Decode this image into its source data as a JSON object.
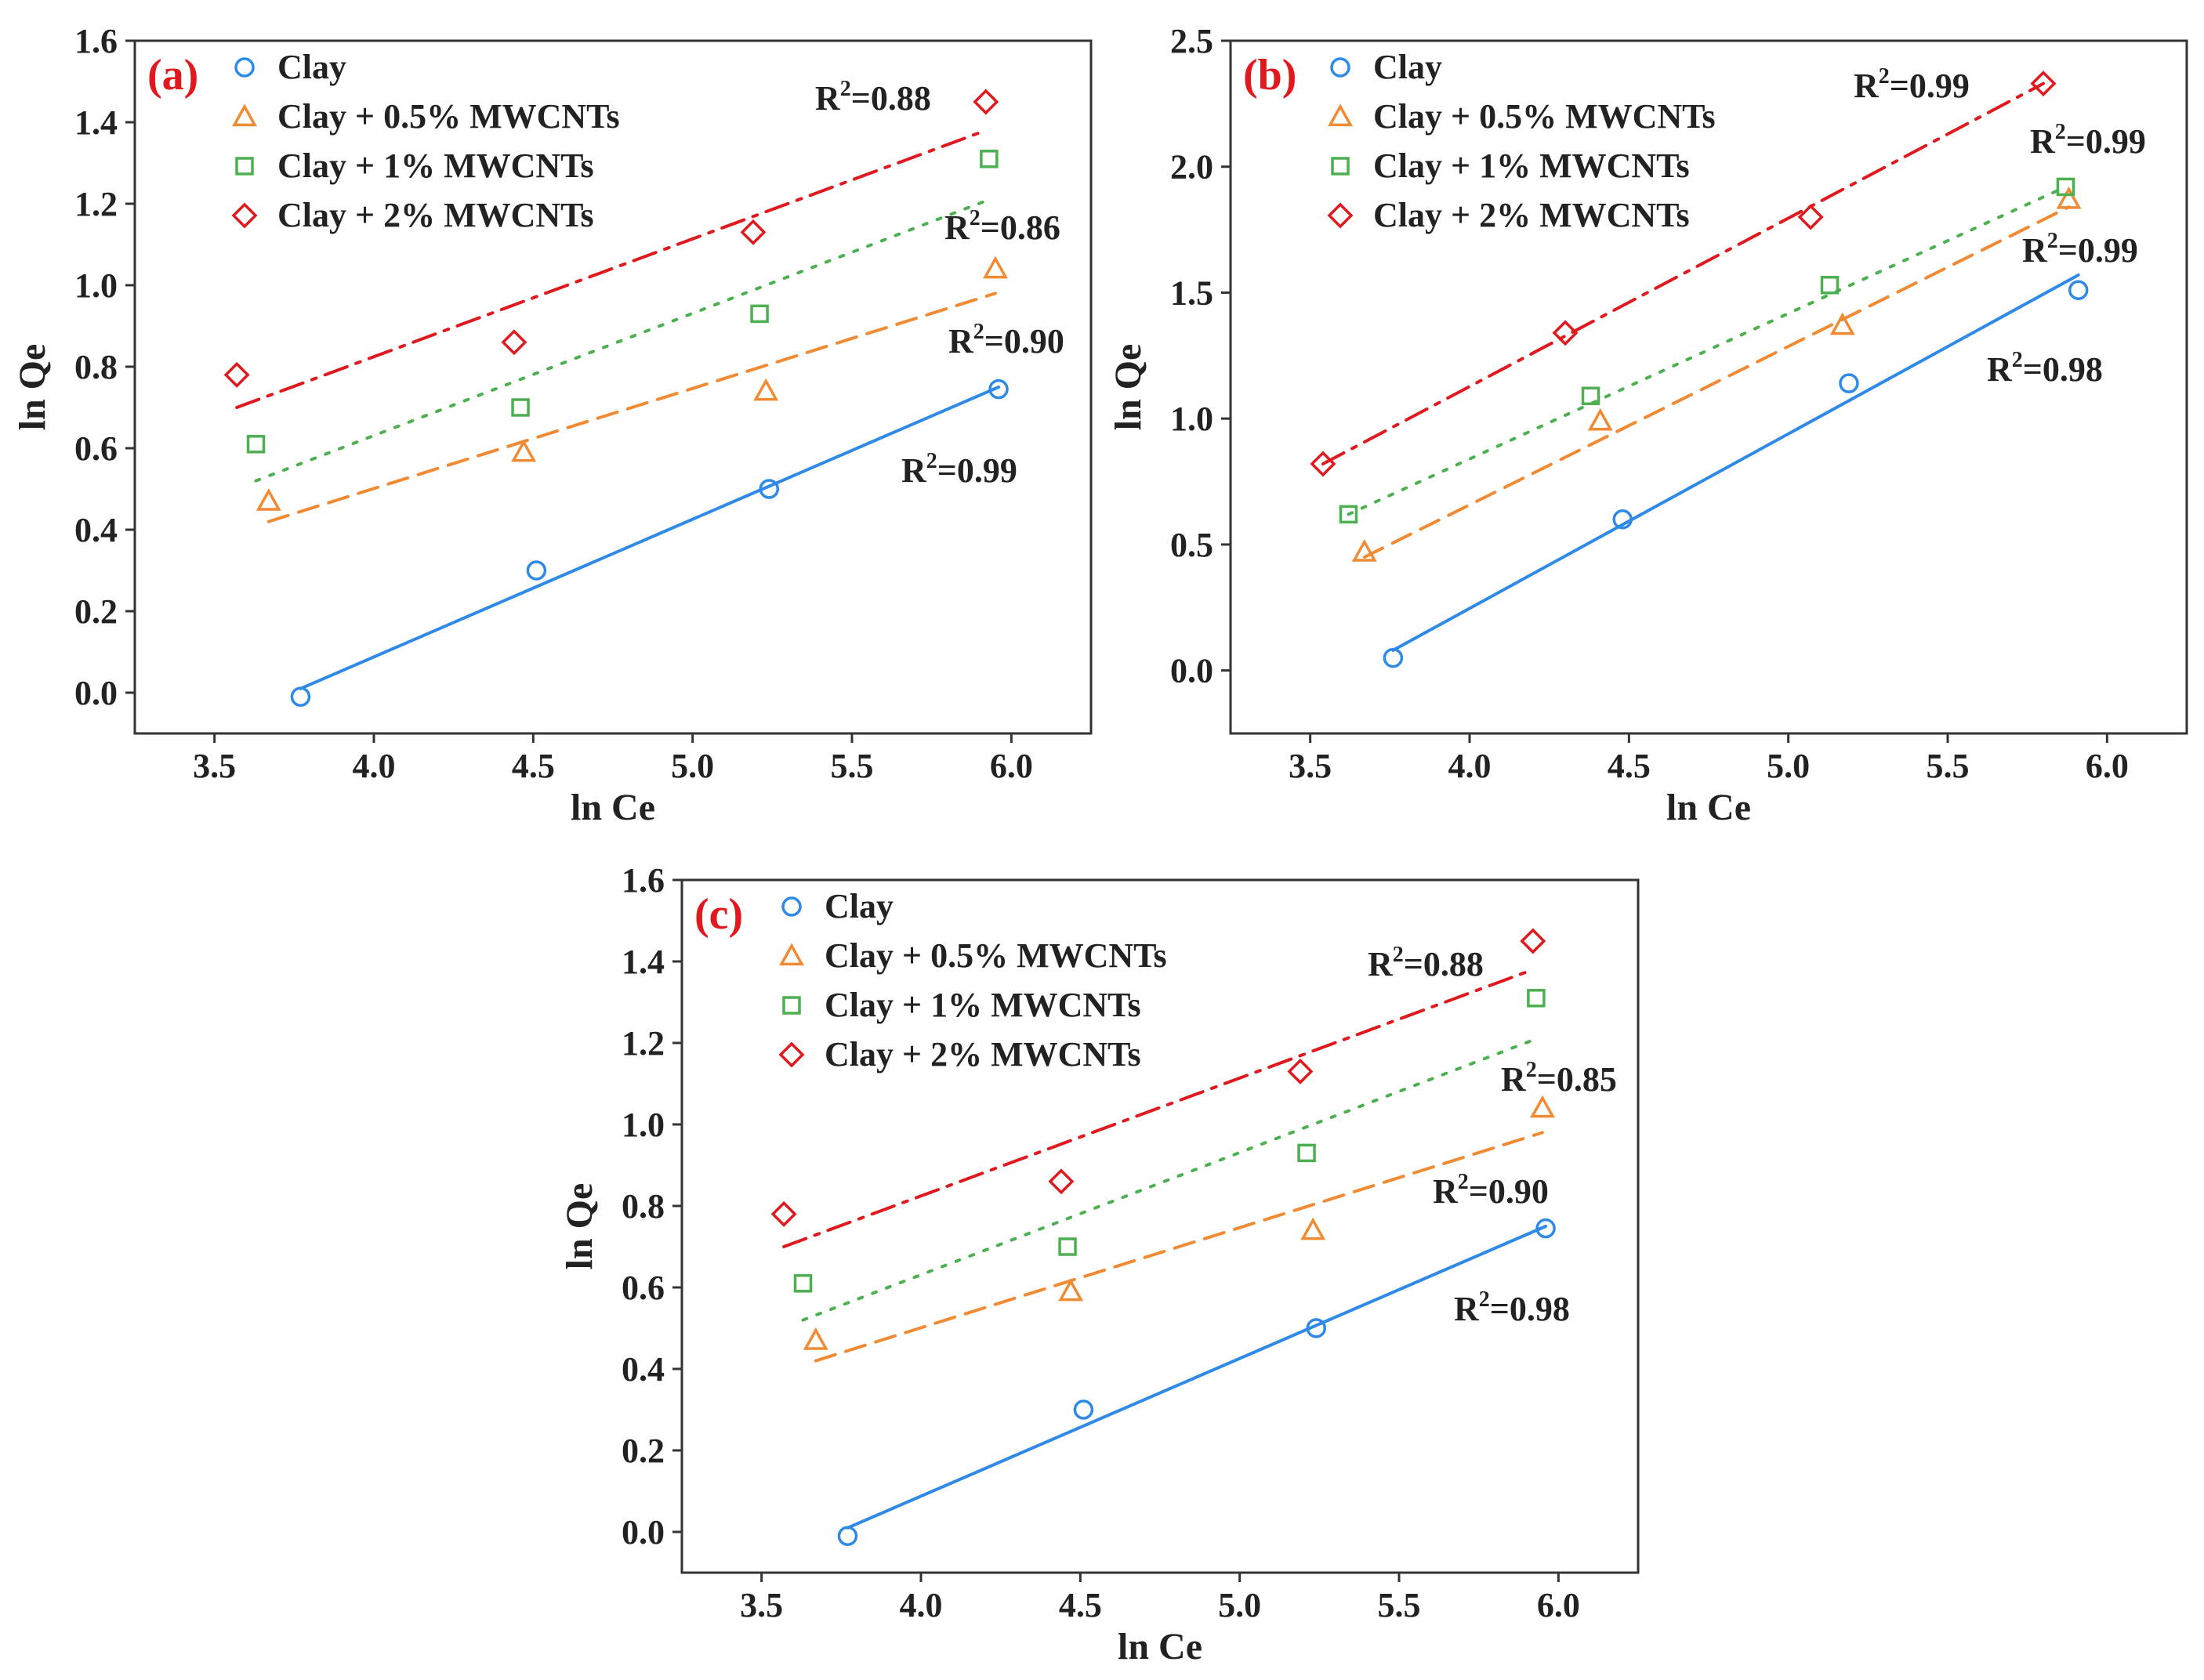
{
  "chart_data": [
    {
      "type": "scatter",
      "panel_label": "(a)",
      "xlabel": "ln Ce",
      "ylabel": "ln Qe",
      "xlim": [
        3.25,
        6.25
      ],
      "ylim": [
        -0.1,
        1.6
      ],
      "xticks": [
        "3.5",
        "4.0",
        "4.5",
        "5.0",
        "5.5",
        "6.0"
      ],
      "yticks": [
        "0.0",
        "0.2",
        "0.4",
        "0.6",
        "0.8",
        "1.0",
        "1.2",
        "1.4",
        "1.6"
      ],
      "legend_position": "top-left",
      "series": [
        {
          "name": "Clay",
          "marker": "circle",
          "color": "#2e8ae6",
          "line": "solid",
          "x": [
            3.77,
            4.51,
            5.24,
            5.96
          ],
          "y": [
            -0.01,
            0.3,
            0.5,
            0.745
          ],
          "fit": {
            "x": [
              3.77,
              5.96
            ],
            "y": [
              0.01,
              0.75
            ]
          },
          "r2": {
            "prefix": "R",
            "sup": "2",
            "value": "=0.99"
          }
        },
        {
          "name": "Clay + 0.5% MWCNTs",
          "marker": "triangle",
          "color": "#f08a33",
          "line": "dashed",
          "x": [
            3.67,
            4.47,
            5.23,
            5.95
          ],
          "y": [
            0.47,
            0.59,
            0.74,
            1.04
          ],
          "fit": {
            "x": [
              3.67,
              5.95
            ],
            "y": [
              0.42,
              0.98
            ]
          },
          "r2": {
            "prefix": "R",
            "sup": "2",
            "value": "=0.90"
          }
        },
        {
          "name": "Clay + 1% MWCNTs",
          "marker": "square",
          "color": "#4caf50",
          "line": "dotted",
          "x": [
            3.63,
            4.46,
            5.21,
            5.93
          ],
          "y": [
            0.61,
            0.7,
            0.93,
            1.31
          ],
          "fit": {
            "x": [
              3.63,
              5.93
            ],
            "y": [
              0.52,
              1.21
            ]
          },
          "r2": {
            "prefix": "R",
            "sup": "2",
            "value": "=0.86"
          }
        },
        {
          "name": "Clay + 2% MWCNTs",
          "marker": "diamond",
          "color": "#e0191f",
          "line": "dashdot",
          "x": [
            3.57,
            4.44,
            5.19,
            5.92
          ],
          "y": [
            0.78,
            0.86,
            1.13,
            1.45
          ],
          "fit": {
            "x": [
              3.57,
              5.92
            ],
            "y": [
              0.7,
              1.38
            ]
          },
          "r2": {
            "prefix": "R",
            "sup": "2",
            "value": "=0.88"
          }
        }
      ]
    },
    {
      "type": "scatter",
      "panel_label": "(b)",
      "xlabel": "ln Ce",
      "ylabel": "ln Qe",
      "xlim": [
        3.25,
        6.25
      ],
      "ylim": [
        -0.25,
        2.5
      ],
      "xticks": [
        "3.5",
        "4.0",
        "4.5",
        "5.0",
        "5.5",
        "6.0"
      ],
      "yticks": [
        "0.0",
        "0.5",
        "1.0",
        "1.5",
        "2.0",
        "2.5"
      ],
      "legend_position": "top-left",
      "series": [
        {
          "name": "Clay",
          "marker": "circle",
          "color": "#2e8ae6",
          "line": "solid",
          "x": [
            3.76,
            4.48,
            5.19,
            5.91
          ],
          "y": [
            0.05,
            0.6,
            1.14,
            1.51
          ],
          "fit": {
            "x": [
              3.76,
              5.91
            ],
            "y": [
              0.08,
              1.57
            ]
          },
          "r2": {
            "prefix": "R",
            "sup": "2",
            "value": "=0.98"
          }
        },
        {
          "name": "Clay + 0.5% MWCNTs",
          "marker": "triangle",
          "color": "#f08a33",
          "line": "dashed",
          "x": [
            3.67,
            4.41,
            5.17,
            5.88
          ],
          "y": [
            0.47,
            0.99,
            1.37,
            1.87
          ],
          "fit": {
            "x": [
              3.67,
              5.88
            ],
            "y": [
              0.45,
              1.84
            ]
          },
          "r2": {
            "prefix": "R",
            "sup": "2",
            "value": "=0.99"
          }
        },
        {
          "name": "Clay + 1% MWCNTs",
          "marker": "square",
          "color": "#4caf50",
          "line": "dotted",
          "x": [
            3.62,
            4.38,
            5.13,
            5.87
          ],
          "y": [
            0.62,
            1.09,
            1.53,
            1.92
          ],
          "fit": {
            "x": [
              3.62,
              5.87
            ],
            "y": [
              0.62,
              1.92
            ]
          },
          "r2": {
            "prefix": "R",
            "sup": "2",
            "value": "=0.99"
          }
        },
        {
          "name": "Clay + 2% MWCNTs",
          "marker": "diamond",
          "color": "#e0191f",
          "line": "dashdot",
          "x": [
            3.54,
            4.3,
            5.07,
            5.8
          ],
          "y": [
            0.82,
            1.34,
            1.8,
            2.33
          ],
          "fit": {
            "x": [
              3.54,
              5.8
            ],
            "y": [
              0.82,
              2.33
            ]
          },
          "r2": {
            "prefix": "R",
            "sup": "2",
            "value": "=0.99"
          }
        }
      ]
    },
    {
      "type": "scatter",
      "panel_label": "(c)",
      "xlabel": "ln Ce",
      "ylabel": "ln Qe",
      "xlim": [
        3.25,
        6.25
      ],
      "ylim": [
        -0.1,
        1.6
      ],
      "xticks": [
        "3.5",
        "4.0",
        "4.5",
        "5.0",
        "5.5",
        "6.0"
      ],
      "yticks": [
        "0.0",
        "0.2",
        "0.4",
        "0.6",
        "0.8",
        "1.0",
        "1.2",
        "1.4",
        "1.6"
      ],
      "legend_position": "top-left",
      "series": [
        {
          "name": "Clay",
          "marker": "circle",
          "color": "#2e8ae6",
          "line": "solid",
          "x": [
            3.77,
            4.51,
            5.24,
            5.96
          ],
          "y": [
            -0.01,
            0.3,
            0.5,
            0.745
          ],
          "fit": {
            "x": [
              3.77,
              5.96
            ],
            "y": [
              0.01,
              0.75
            ]
          },
          "r2": {
            "prefix": "R",
            "sup": "2",
            "value": "=0.98"
          }
        },
        {
          "name": "Clay + 0.5% MWCNTs",
          "marker": "triangle",
          "color": "#f08a33",
          "line": "dashed",
          "x": [
            3.67,
            4.47,
            5.23,
            5.95
          ],
          "y": [
            0.47,
            0.59,
            0.74,
            1.04
          ],
          "fit": {
            "x": [
              3.67,
              5.95
            ],
            "y": [
              0.42,
              0.98
            ]
          },
          "r2": {
            "prefix": "R",
            "sup": "2",
            "value": "=0.90"
          }
        },
        {
          "name": "Clay + 1% MWCNTs",
          "marker": "square",
          "color": "#4caf50",
          "line": "dotted",
          "x": [
            3.63,
            4.46,
            5.21,
            5.93
          ],
          "y": [
            0.61,
            0.7,
            0.93,
            1.31
          ],
          "fit": {
            "x": [
              3.63,
              5.93
            ],
            "y": [
              0.52,
              1.21
            ]
          },
          "r2": {
            "prefix": "R",
            "sup": "2",
            "value": "=0.85"
          }
        },
        {
          "name": "Clay + 2% MWCNTs",
          "marker": "diamond",
          "color": "#e0191f",
          "line": "dashdot",
          "x": [
            3.57,
            4.44,
            5.19,
            5.92
          ],
          "y": [
            0.78,
            0.86,
            1.13,
            1.45
          ],
          "fit": {
            "x": [
              3.57,
              5.92
            ],
            "y": [
              0.7,
              1.38
            ]
          },
          "r2": {
            "prefix": "R",
            "sup": "2",
            "value": "=0.88"
          }
        }
      ]
    }
  ]
}
